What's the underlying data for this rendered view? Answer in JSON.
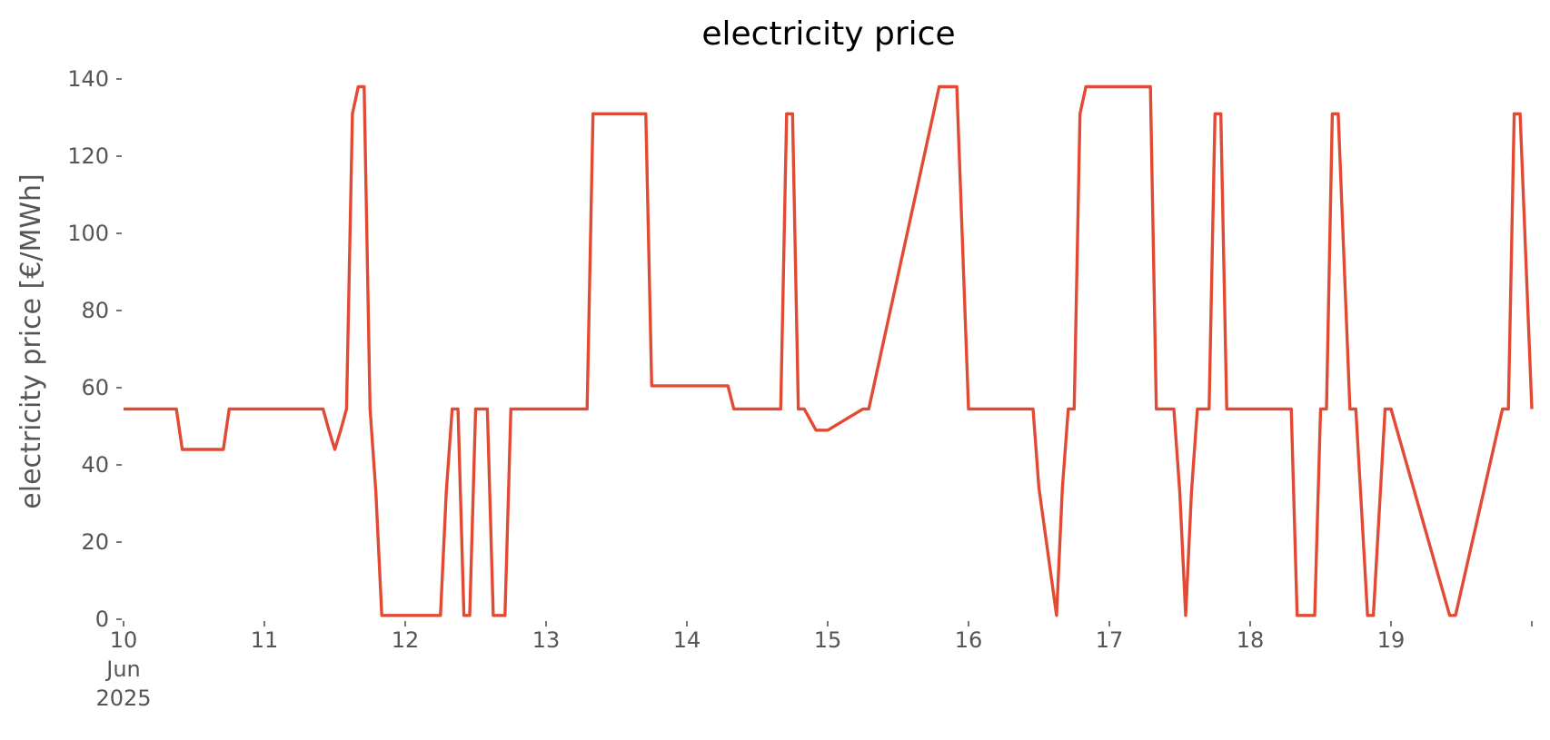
{
  "chart_data": {
    "type": "line",
    "title": "electricity price",
    "xlabel": "",
    "ylabel": "electricity price [€/MWh]",
    "ylim": [
      0,
      140
    ],
    "xlim": [
      "2025-06-10 00:00",
      "2025-06-20 00:00"
    ],
    "grid": false,
    "x_ticks": [
      {
        "date": "2025-06-10",
        "label": "10",
        "sub1": "Jun",
        "sub2": "2025"
      },
      {
        "date": "2025-06-11",
        "label": "11"
      },
      {
        "date": "2025-06-12",
        "label": "12"
      },
      {
        "date": "2025-06-13",
        "label": "13"
      },
      {
        "date": "2025-06-14",
        "label": "14"
      },
      {
        "date": "2025-06-15",
        "label": "15"
      },
      {
        "date": "2025-06-16",
        "label": "16"
      },
      {
        "date": "2025-06-17",
        "label": "17"
      },
      {
        "date": "2025-06-18",
        "label": "18"
      },
      {
        "date": "2025-06-19",
        "label": "19"
      },
      {
        "date": "2025-06-20",
        "label": ""
      }
    ],
    "y_ticks": [
      0,
      20,
      40,
      60,
      80,
      100,
      120,
      140
    ],
    "colors": {
      "line": "#e24a33",
      "tick": "#555555"
    },
    "series": [
      {
        "name": "",
        "x": [
          "2025-06-10 00:00",
          "2025-06-10 09:00",
          "2025-06-10 10:00",
          "2025-06-10 17:00",
          "2025-06-10 18:00",
          "2025-06-11 10:00",
          "2025-06-11 11:00",
          "2025-06-11 12:00",
          "2025-06-11 13:00",
          "2025-06-11 14:00",
          "2025-06-11 15:00",
          "2025-06-11 16:00",
          "2025-06-11 17:00",
          "2025-06-11 18:00",
          "2025-06-11 19:00",
          "2025-06-11 20:00",
          "2025-06-12 06:00",
          "2025-06-12 07:00",
          "2025-06-12 08:00",
          "2025-06-12 09:00",
          "2025-06-12 10:00",
          "2025-06-12 11:00",
          "2025-06-12 12:00",
          "2025-06-12 14:00",
          "2025-06-12 15:00",
          "2025-06-12 17:00",
          "2025-06-12 18:00",
          "2025-06-13 07:00",
          "2025-06-13 08:00",
          "2025-06-13 17:00",
          "2025-06-13 18:00",
          "2025-06-14 07:00",
          "2025-06-14 08:00",
          "2025-06-14 16:00",
          "2025-06-14 17:00",
          "2025-06-14 18:00",
          "2025-06-14 19:00",
          "2025-06-14 20:00",
          "2025-06-14 22:00",
          "2025-06-15 00:00",
          "2025-06-15 06:00",
          "2025-06-15 07:00",
          "2025-06-15 18:00",
          "2025-06-15 19:00",
          "2025-06-15 22:00",
          "2025-06-16 00:00",
          "2025-06-16 11:00",
          "2025-06-16 12:00",
          "2025-06-16 15:00",
          "2025-06-16 16:00",
          "2025-06-16 17:00",
          "2025-06-16 18:00",
          "2025-06-16 19:00",
          "2025-06-16 20:00",
          "2025-06-17 07:00",
          "2025-06-17 08:00",
          "2025-06-17 11:00",
          "2025-06-17 12:00",
          "2025-06-17 13:00",
          "2025-06-17 14:00",
          "2025-06-17 15:00",
          "2025-06-17 17:00",
          "2025-06-17 18:00",
          "2025-06-17 19:00",
          "2025-06-17 20:00",
          "2025-06-18 07:00",
          "2025-06-18 08:00",
          "2025-06-18 11:00",
          "2025-06-18 12:00",
          "2025-06-18 13:00",
          "2025-06-18 14:00",
          "2025-06-18 15:00",
          "2025-06-18 17:00",
          "2025-06-18 18:00",
          "2025-06-18 20:00",
          "2025-06-18 21:00",
          "2025-06-18 23:00",
          "2025-06-19 00:00",
          "2025-06-19 10:00",
          "2025-06-19 11:00",
          "2025-06-19 19:00",
          "2025-06-19 20:00",
          "2025-06-19 21:00",
          "2025-06-19 22:00",
          "2025-06-20 00:00"
        ],
        "y": [
          54.5,
          54.5,
          44,
          44,
          54.5,
          54.5,
          49,
          44,
          49,
          54.5,
          131,
          138,
          138,
          54.5,
          33,
          1,
          1,
          33,
          54.5,
          54.5,
          1,
          1,
          54.5,
          54.5,
          1,
          1,
          54.5,
          54.5,
          131,
          131,
          60.5,
          60.5,
          54.5,
          54.5,
          131,
          131,
          54.5,
          54.5,
          49,
          49,
          54.5,
          54.5,
          131,
          138,
          138,
          54.5,
          54.5,
          34,
          1,
          34,
          54.5,
          54.5,
          131,
          138,
          138,
          54.5,
          54.5,
          33,
          1,
          33,
          54.5,
          54.5,
          131,
          131,
          54.5,
          54.5,
          1,
          1,
          54.5,
          54.5,
          131,
          131,
          54.5,
          54.5,
          1,
          1,
          54.5,
          54.5,
          1,
          1,
          54.5,
          54.5,
          131,
          131,
          54.5
        ]
      }
    ]
  }
}
